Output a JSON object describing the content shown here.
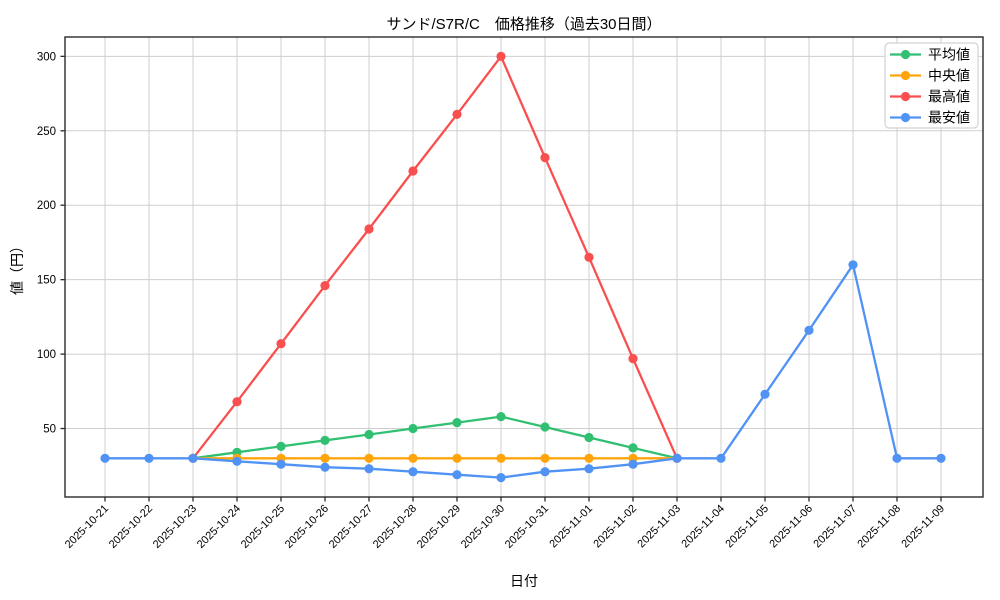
{
  "title": "サンド/S7R/C　価格推移（過去30日間）",
  "colors": {
    "grid": "#cfcfcf",
    "spine": "#2a2a2a",
    "tick": "#2a2a2a",
    "legend_border": "#d2d2d2",
    "background": "#ffffff"
  },
  "chart_data": {
    "type": "line",
    "title": "サンド/S7R/C　価格推移（過去30日間）",
    "xlabel": "日付",
    "ylabel": "値（円）",
    "grid": true,
    "legend_position": "upper right",
    "ylim": [
      4,
      313
    ],
    "yticks": [
      50,
      100,
      150,
      200,
      250,
      300
    ],
    "categories": [
      "2025-10-21",
      "2025-10-22",
      "2025-10-23",
      "2025-10-24",
      "2025-10-25",
      "2025-10-26",
      "2025-10-27",
      "2025-10-28",
      "2025-10-29",
      "2025-10-30",
      "2025-10-31",
      "2025-11-01",
      "2025-11-02",
      "2025-11-03",
      "2025-11-04",
      "2025-11-05",
      "2025-11-06",
      "2025-11-07",
      "2025-11-08",
      "2025-11-09"
    ],
    "series": [
      {
        "key": "avg",
        "name": "平均値",
        "color": "#31bf71",
        "values": [
          null,
          null,
          30,
          34,
          38,
          42,
          46,
          50,
          54,
          58,
          51,
          44,
          37,
          30,
          null,
          null,
          null,
          null,
          null,
          null
        ]
      },
      {
        "key": "median",
        "name": "中央値",
        "color": "#ffa40b",
        "values": [
          null,
          null,
          30,
          30,
          30,
          30,
          30,
          30,
          30,
          30,
          30,
          30,
          30,
          30,
          null,
          null,
          null,
          null,
          null,
          null
        ]
      },
      {
        "key": "max",
        "name": "最高値",
        "color": "#fa4f4f",
        "values": [
          null,
          null,
          30,
          68,
          107,
          146,
          184,
          223,
          261,
          300,
          232,
          165,
          97,
          30,
          null,
          null,
          null,
          null,
          null,
          null
        ]
      },
      {
        "key": "min",
        "name": "最安値",
        "color": "#5093f5",
        "values": [
          30,
          30,
          30,
          28,
          26,
          24,
          23,
          21,
          19,
          17,
          21,
          23,
          26,
          30,
          30,
          73,
          116,
          160,
          30,
          30
        ]
      }
    ]
  }
}
